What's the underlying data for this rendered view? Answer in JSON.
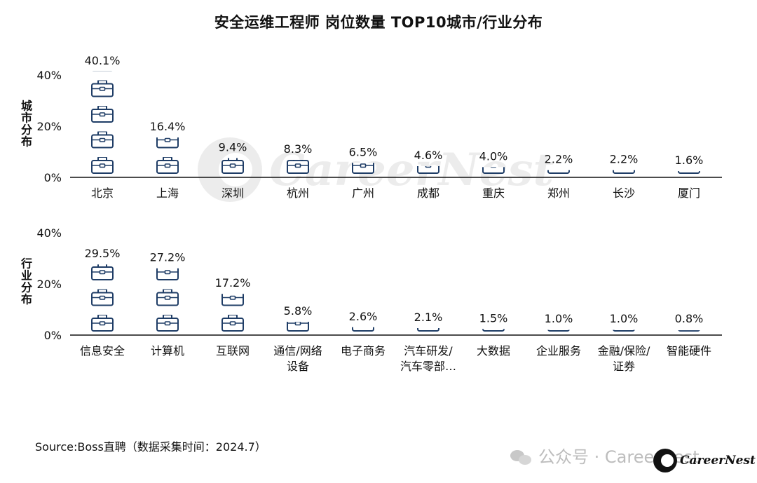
{
  "title": "安全运维工程师 岗位数量 TOP10城市/行业分布",
  "source": "Source:Boss直聘（数据采集时间：2024.7）",
  "watermark": "公众号 · CareerNest",
  "brand_name": "CareerNest",
  "colors": {
    "icon_stroke": "#1f3d66",
    "icon_fill": "#ffffff",
    "axis": "#111111",
    "text": "#111111"
  },
  "icon": "briefcase-icon",
  "chart_data": [
    {
      "type": "bar",
      "ylabel": "城市分布",
      "ylim": [
        0,
        40
      ],
      "yticks": [
        0,
        20,
        40
      ],
      "ytick_labels": [
        "0%",
        "20%",
        "40%"
      ],
      "unit_per_icon": 10,
      "categories": [
        "北京",
        "上海",
        "深圳",
        "杭州",
        "广州",
        "成都",
        "重庆",
        "郑州",
        "长沙",
        "厦门"
      ],
      "values": [
        40.1,
        16.4,
        9.4,
        8.3,
        6.5,
        4.6,
        4.0,
        2.2,
        2.2,
        1.6
      ],
      "labels": [
        "40.1%",
        "16.4%",
        "9.4%",
        "8.3%",
        "6.5%",
        "4.6%",
        "4.0%",
        "2.2%",
        "2.2%",
        "1.6%"
      ]
    },
    {
      "type": "bar",
      "ylabel": "行业分布",
      "ylim": [
        0,
        40
      ],
      "yticks": [
        0,
        20,
        40
      ],
      "ytick_labels": [
        "0%",
        "20%",
        "40%"
      ],
      "unit_per_icon": 10,
      "categories": [
        "信息安全",
        "计算机",
        "互联网",
        "通信/网络\n设备",
        "电子商务",
        "汽车研发/\n汽车零部…",
        "大数据",
        "企业服务",
        "金融/保险/\n证券",
        "智能硬件"
      ],
      "values": [
        29.5,
        27.2,
        17.2,
        5.8,
        2.6,
        2.1,
        1.5,
        1.0,
        1.0,
        0.8
      ],
      "labels": [
        "29.5%",
        "27.2%",
        "17.2%",
        "5.8%",
        "2.6%",
        "2.1%",
        "1.5%",
        "1.0%",
        "1.0%",
        "0.8%"
      ]
    }
  ]
}
